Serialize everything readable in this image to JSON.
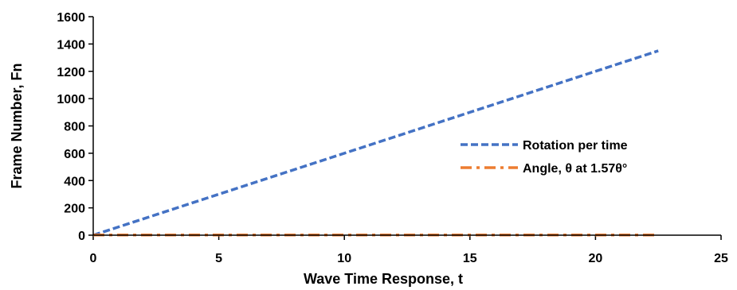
{
  "chart_data": {
    "type": "line",
    "title": "",
    "xlabel": "Wave Time Response, t",
    "ylabel": "Frame Number, Fn",
    "xlim": [
      0,
      25
    ],
    "ylim": [
      0,
      1600
    ],
    "xticks": [
      0,
      5,
      10,
      15,
      20,
      25
    ],
    "yticks": [
      0,
      200,
      400,
      600,
      800,
      1000,
      1200,
      1400,
      1600
    ],
    "grid": false,
    "legend_position": "center-right",
    "series": [
      {
        "name": "Rotation per time",
        "color": "#4472C4",
        "dash": "dashed",
        "x": [
          0,
          22.5
        ],
        "y": [
          0,
          1350
        ]
      },
      {
        "name": "Angle, θ at 1.57θ°",
        "color": "#ED7D31",
        "dash": "dash-dot",
        "x": [
          0,
          22.5
        ],
        "y": [
          1.57,
          1.57
        ]
      }
    ]
  }
}
